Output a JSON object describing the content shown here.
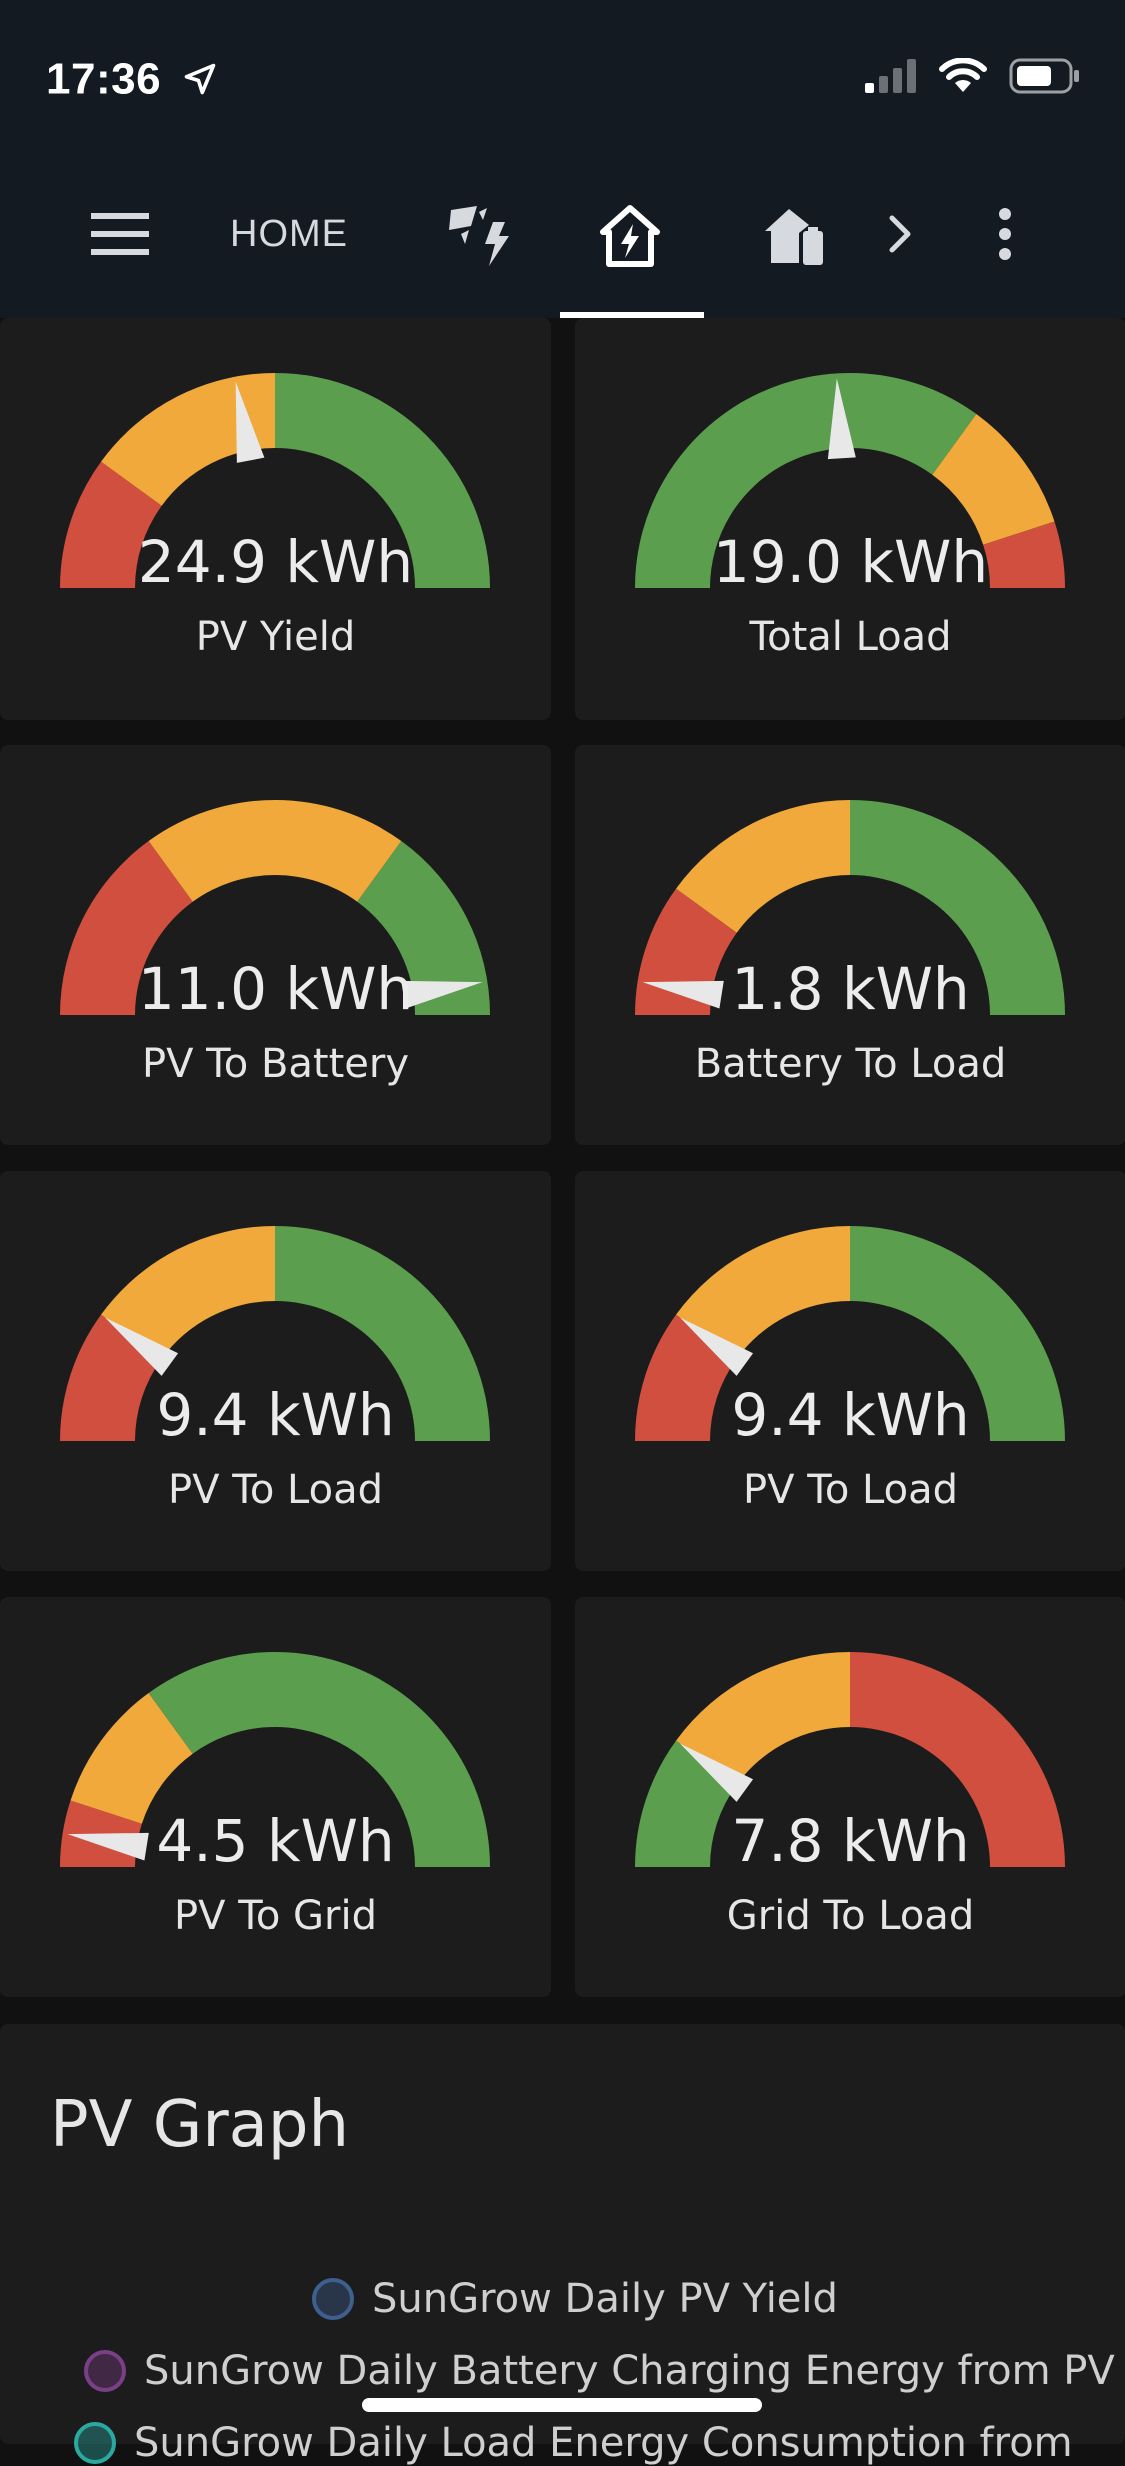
{
  "status_bar": {
    "time": "17:36"
  },
  "header": {
    "home_label": "HOME",
    "icons": [
      "menu-icon",
      "solar-power-icon",
      "home-lightning-icon",
      "home-battery-icon",
      "chevron-right-icon",
      "more-vertical-icon"
    ],
    "active_tab": "home-lightning"
  },
  "colors": {
    "red": "#d04f3f",
    "orange": "#f0a93a",
    "green": "#5a9e4e",
    "needle": "#e8e8e8",
    "card": "#1c1c1c"
  },
  "gauges": [
    {
      "value": "24.9 kWh",
      "label": "PV Yield",
      "needle_fraction": 0.44,
      "segments": [
        [
          "red",
          0,
          0.2
        ],
        [
          "orange",
          0.2,
          0.5
        ],
        [
          "green",
          0.5,
          1
        ]
      ]
    },
    {
      "value": "19.0 kWh",
      "label": "Total Load",
      "needle_fraction": 0.48,
      "segments": [
        [
          "green",
          0,
          0.7
        ],
        [
          "orange",
          0.7,
          0.9
        ],
        [
          "red",
          0.9,
          1
        ]
      ]
    },
    {
      "value": "11.0 kWh",
      "label": "PV To Battery",
      "needle_fraction": 0.95,
      "segments": [
        [
          "red",
          0,
          0.3
        ],
        [
          "orange",
          0.3,
          0.7
        ],
        [
          "green",
          0.7,
          1
        ]
      ]
    },
    {
      "value": "1.8 kWh",
      "label": "Battery To Load",
      "needle_fraction": 0.05,
      "segments": [
        [
          "red",
          0,
          0.2
        ],
        [
          "orange",
          0.2,
          0.5
        ],
        [
          "green",
          0.5,
          1
        ]
      ]
    },
    {
      "value": "9.4 kWh",
      "label": "PV To Load",
      "needle_fraction": 0.2,
      "segments": [
        [
          "red",
          0,
          0.2
        ],
        [
          "orange",
          0.2,
          0.5
        ],
        [
          "green",
          0.5,
          1
        ]
      ]
    },
    {
      "value": "9.4 kWh",
      "label": "PV To Load",
      "needle_fraction": 0.2,
      "segments": [
        [
          "red",
          0,
          0.2
        ],
        [
          "orange",
          0.2,
          0.5
        ],
        [
          "green",
          0.5,
          1
        ]
      ]
    },
    {
      "value": "4.5 kWh",
      "label": "PV To Grid",
      "needle_fraction": 0.05,
      "segments": [
        [
          "red",
          0,
          0.1
        ],
        [
          "orange",
          0.1,
          0.3
        ],
        [
          "green",
          0.3,
          1
        ]
      ]
    },
    {
      "value": "7.8 kWh",
      "label": "Grid To Load",
      "needle_fraction": 0.2,
      "segments": [
        [
          "green",
          0,
          0.2
        ],
        [
          "orange",
          0.2,
          0.5
        ],
        [
          "red",
          0.5,
          1
        ]
      ]
    }
  ],
  "graph": {
    "title": "PV Graph",
    "legend": [
      {
        "label": "SunGrow Daily PV Yield",
        "color": "#3f5f8f"
      },
      {
        "label": "SunGrow Daily Battery Charging Energy from PV",
        "color": "#7a3f86"
      },
      {
        "label": "SunGrow Daily Load Energy Consumption from",
        "color": "#2aa9a0"
      }
    ]
  }
}
